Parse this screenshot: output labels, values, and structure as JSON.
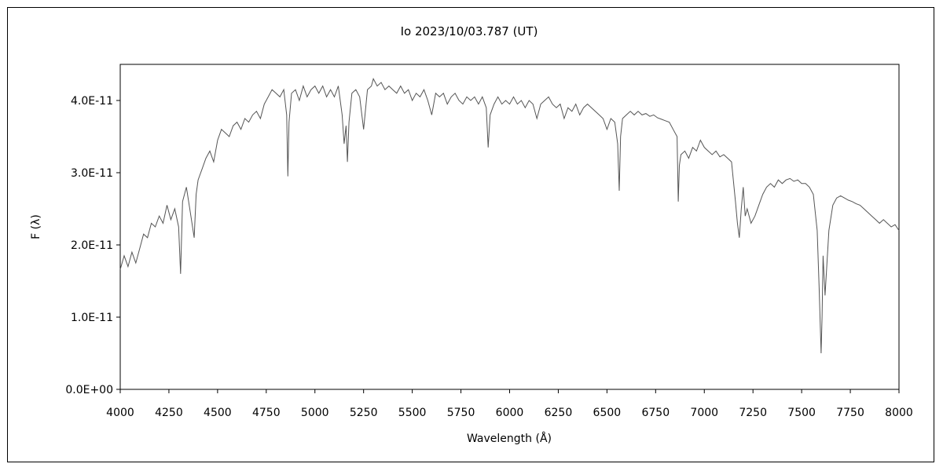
{
  "chart_data": {
    "type": "line",
    "title": "Io   2023/10/03.787 (UT)",
    "xlabel": "Wavelength (Å)",
    "ylabel": "F (λ)",
    "xlim": [
      4000,
      8000
    ],
    "ylim": [
      0,
      4.5e-11
    ],
    "x_ticks": [
      4000,
      4250,
      4500,
      4750,
      5000,
      5250,
      5500,
      5750,
      6000,
      6250,
      6500,
      6750,
      7000,
      7250,
      7500,
      7750,
      8000
    ],
    "x_tick_labels": [
      "4000",
      "4250",
      "4500",
      "4750",
      "5000",
      "5250",
      "5500",
      "5750",
      "6000",
      "6250",
      "6500",
      "6750",
      "7000",
      "7250",
      "7500",
      "7750",
      "8000"
    ],
    "y_ticks": [
      0,
      1e-11,
      2e-11,
      3e-11,
      4e-11
    ],
    "y_tick_labels": [
      "0.0E+00",
      "1.0E-11",
      "2.0E-11",
      "3.0E-11",
      "4.0E-11"
    ],
    "grid": false,
    "line_color": "#555555",
    "series": [
      {
        "x": [
          4000,
          4020,
          4040,
          4060,
          4080,
          4100,
          4120,
          4140,
          4160,
          4180,
          4200,
          4220,
          4240,
          4260,
          4280,
          4300,
          4310,
          4320,
          4340,
          4360,
          4380,
          4390,
          4400,
          4420,
          4440,
          4460,
          4480,
          4500,
          4520,
          4540,
          4560,
          4580,
          4600,
          4620,
          4640,
          4660,
          4680,
          4700,
          4720,
          4740,
          4760,
          4780,
          4800,
          4820,
          4840,
          4855,
          4861,
          4867,
          4880,
          4900,
          4920,
          4940,
          4960,
          4980,
          5000,
          5020,
          5040,
          5060,
          5080,
          5100,
          5120,
          5140,
          5150,
          5160,
          5167,
          5175,
          5190,
          5210,
          5230,
          5250,
          5270,
          5290,
          5300,
          5320,
          5340,
          5360,
          5380,
          5400,
          5420,
          5440,
          5460,
          5480,
          5500,
          5520,
          5540,
          5560,
          5580,
          5600,
          5620,
          5640,
          5660,
          5680,
          5700,
          5720,
          5740,
          5760,
          5780,
          5800,
          5820,
          5840,
          5860,
          5880,
          5890,
          5900,
          5920,
          5940,
          5960,
          5980,
          6000,
          6020,
          6040,
          6060,
          6080,
          6100,
          6120,
          6140,
          6160,
          6180,
          6200,
          6220,
          6240,
          6260,
          6280,
          6300,
          6320,
          6340,
          6360,
          6380,
          6400,
          6420,
          6440,
          6460,
          6480,
          6500,
          6520,
          6540,
          6555,
          6563,
          6570,
          6580,
          6600,
          6620,
          6640,
          6660,
          6680,
          6700,
          6720,
          6740,
          6760,
          6780,
          6800,
          6820,
          6840,
          6860,
          6866,
          6872,
          6880,
          6900,
          6920,
          6940,
          6960,
          6980,
          7000,
          7020,
          7040,
          7060,
          7080,
          7100,
          7120,
          7140,
          7160,
          7170,
          7180,
          7190,
          7200,
          7210,
          7220,
          7240,
          7260,
          7280,
          7300,
          7320,
          7340,
          7360,
          7380,
          7400,
          7420,
          7440,
          7460,
          7480,
          7500,
          7520,
          7540,
          7560,
          7580,
          7590,
          7600,
          7605,
          7610,
          7620,
          7640,
          7660,
          7680,
          7700,
          7720,
          7740,
          7760,
          7780,
          7800,
          7820,
          7840,
          7860,
          7880,
          7900,
          7920,
          7940,
          7960,
          7980,
          8000
        ],
        "y": [
          1.66e-11,
          1.85e-11,
          1.7e-11,
          1.9e-11,
          1.75e-11,
          1.95e-11,
          2.15e-11,
          2.1e-11,
          2.3e-11,
          2.25e-11,
          2.4e-11,
          2.3e-11,
          2.55e-11,
          2.35e-11,
          2.5e-11,
          2.25e-11,
          1.6e-11,
          2.6e-11,
          2.8e-11,
          2.45e-11,
          2.1e-11,
          2.7e-11,
          2.9e-11,
          3.05e-11,
          3.2e-11,
          3.3e-11,
          3.15e-11,
          3.45e-11,
          3.6e-11,
          3.55e-11,
          3.5e-11,
          3.65e-11,
          3.7e-11,
          3.6e-11,
          3.75e-11,
          3.7e-11,
          3.8e-11,
          3.85e-11,
          3.75e-11,
          3.95e-11,
          4.05e-11,
          4.15e-11,
          4.1e-11,
          4.05e-11,
          4.15e-11,
          3.8e-11,
          2.95e-11,
          3.7e-11,
          4.1e-11,
          4.15e-11,
          4e-11,
          4.2e-11,
          4.05e-11,
          4.15e-11,
          4.2e-11,
          4.1e-11,
          4.2e-11,
          4.05e-11,
          4.15e-11,
          4.05e-11,
          4.2e-11,
          3.8e-11,
          3.4e-11,
          3.65e-11,
          3.15e-11,
          3.7e-11,
          4.1e-11,
          4.15e-11,
          4.05e-11,
          3.6e-11,
          4.15e-11,
          4.2e-11,
          4.3e-11,
          4.2e-11,
          4.25e-11,
          4.15e-11,
          4.2e-11,
          4.15e-11,
          4.1e-11,
          4.2e-11,
          4.1e-11,
          4.15e-11,
          4e-11,
          4.1e-11,
          4.05e-11,
          4.15e-11,
          4e-11,
          3.8e-11,
          4.1e-11,
          4.05e-11,
          4.1e-11,
          3.95e-11,
          4.05e-11,
          4.1e-11,
          4e-11,
          3.95e-11,
          4.05e-11,
          4e-11,
          4.05e-11,
          3.95e-11,
          4.05e-11,
          3.9e-11,
          3.35e-11,
          3.8e-11,
          3.95e-11,
          4.05e-11,
          3.95e-11,
          4e-11,
          3.95e-11,
          4.05e-11,
          3.95e-11,
          4e-11,
          3.9e-11,
          4e-11,
          3.95e-11,
          3.75e-11,
          3.95e-11,
          4e-11,
          4.05e-11,
          3.95e-11,
          3.9e-11,
          3.95e-11,
          3.75e-11,
          3.9e-11,
          3.85e-11,
          3.95e-11,
          3.8e-11,
          3.9e-11,
          3.95e-11,
          3.9e-11,
          3.85e-11,
          3.8e-11,
          3.75e-11,
          3.6e-11,
          3.75e-11,
          3.7e-11,
          3.4e-11,
          2.75e-11,
          3.5e-11,
          3.75e-11,
          3.8e-11,
          3.85e-11,
          3.8e-11,
          3.85e-11,
          3.8e-11,
          3.82e-11,
          3.78e-11,
          3.8e-11,
          3.76e-11,
          3.74e-11,
          3.72e-11,
          3.7e-11,
          3.6e-11,
          3.5e-11,
          2.6e-11,
          3.1e-11,
          3.25e-11,
          3.3e-11,
          3.2e-11,
          3.35e-11,
          3.3e-11,
          3.45e-11,
          3.35e-11,
          3.3e-11,
          3.25e-11,
          3.3e-11,
          3.22e-11,
          3.25e-11,
          3.2e-11,
          3.15e-11,
          2.6e-11,
          2.3e-11,
          2.1e-11,
          2.5e-11,
          2.8e-11,
          2.4e-11,
          2.5e-11,
          2.3e-11,
          2.4e-11,
          2.55e-11,
          2.7e-11,
          2.8e-11,
          2.85e-11,
          2.8e-11,
          2.9e-11,
          2.85e-11,
          2.9e-11,
          2.92e-11,
          2.88e-11,
          2.9e-11,
          2.85e-11,
          2.85e-11,
          2.8e-11,
          2.7e-11,
          2.2e-11,
          1.4e-11,
          5e-12,
          1e-11,
          1.85e-11,
          1.3e-11,
          2.2e-11,
          2.55e-11,
          2.65e-11,
          2.68e-11,
          2.65e-11,
          2.62e-11,
          2.6e-11,
          2.57e-11,
          2.55e-11,
          2.5e-11,
          2.45e-11,
          2.4e-11,
          2.35e-11,
          2.3e-11,
          2.35e-11,
          2.3e-11,
          2.25e-11,
          2.28e-11,
          2.2e-11
        ]
      }
    ]
  }
}
